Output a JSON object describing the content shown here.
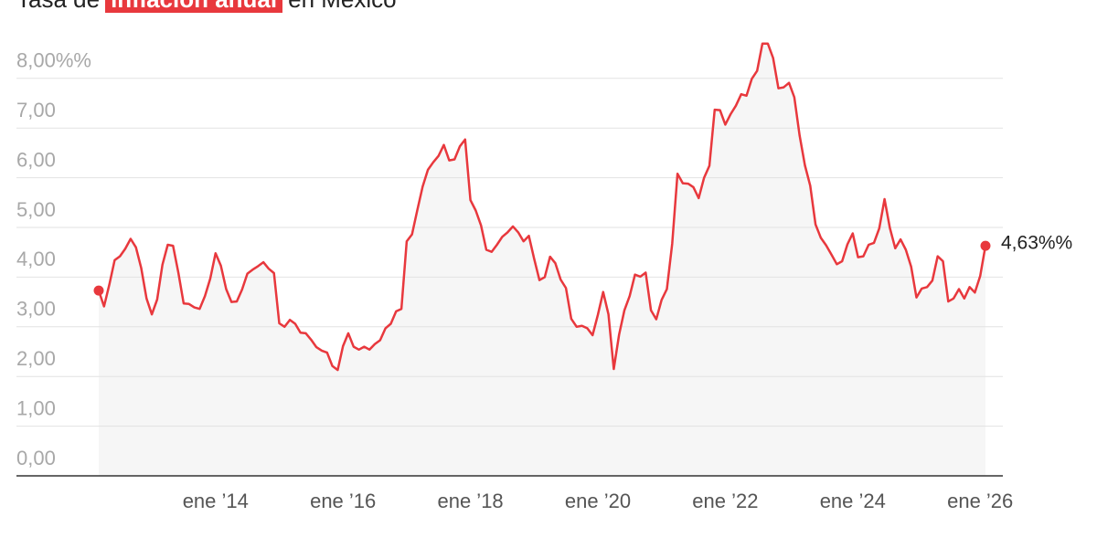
{
  "chart_data": {
    "type": "line",
    "title_prefix": "Tasa de",
    "title_highlight": "inflación anual",
    "title_suffix": "en México",
    "color": "#e8383d",
    "grid": true,
    "x": [
      "2012-03",
      "2012-04",
      "2012-05",
      "2012-06",
      "2012-07",
      "2012-08",
      "2012-09",
      "2012-10",
      "2012-11",
      "2012-12",
      "2013-01",
      "2013-02",
      "2013-03",
      "2013-04",
      "2013-05",
      "2013-06",
      "2013-07",
      "2013-08",
      "2013-09",
      "2013-10",
      "2013-11",
      "2013-12",
      "2014-01",
      "2014-02",
      "2014-03",
      "2014-04",
      "2014-05",
      "2014-06",
      "2014-07",
      "2014-08",
      "2014-09",
      "2014-10",
      "2014-11",
      "2014-12",
      "2015-01",
      "2015-02",
      "2015-03",
      "2015-04",
      "2015-05",
      "2015-06",
      "2015-07",
      "2015-08",
      "2015-09",
      "2015-10",
      "2015-11",
      "2015-12",
      "2016-01",
      "2016-02",
      "2016-03",
      "2016-04",
      "2016-05",
      "2016-06",
      "2016-07",
      "2016-08",
      "2016-09",
      "2016-10",
      "2016-11",
      "2016-12",
      "2017-01",
      "2017-02",
      "2017-03",
      "2017-04",
      "2017-05",
      "2017-06",
      "2017-07",
      "2017-08",
      "2017-09",
      "2017-10",
      "2017-11",
      "2017-12",
      "2018-01",
      "2018-02",
      "2018-03",
      "2018-04",
      "2018-05",
      "2018-06",
      "2018-07",
      "2018-08",
      "2018-09",
      "2018-10",
      "2018-11",
      "2018-12",
      "2019-01",
      "2019-02",
      "2019-03",
      "2019-04",
      "2019-05",
      "2019-06",
      "2019-07",
      "2019-08",
      "2019-09",
      "2019-10",
      "2019-11",
      "2019-12",
      "2020-01",
      "2020-02",
      "2020-03",
      "2020-04",
      "2020-05",
      "2020-06",
      "2020-07",
      "2020-08",
      "2020-09",
      "2020-10",
      "2020-11",
      "2020-12",
      "2021-01",
      "2021-02",
      "2021-03",
      "2021-04",
      "2021-05",
      "2021-06",
      "2021-07",
      "2021-08",
      "2021-09",
      "2021-10",
      "2021-11",
      "2021-12",
      "2022-01",
      "2022-02",
      "2022-03",
      "2022-04",
      "2022-05",
      "2022-06",
      "2022-07",
      "2022-08",
      "2022-09",
      "2022-10",
      "2022-11",
      "2022-12",
      "2023-01",
      "2023-02",
      "2023-03",
      "2023-04",
      "2023-05",
      "2023-06",
      "2023-07",
      "2023-08",
      "2023-09",
      "2023-10",
      "2023-11",
      "2023-12",
      "2024-01",
      "2024-02",
      "2024-03",
      "2024-04",
      "2024-05",
      "2024-06",
      "2024-07",
      "2024-08",
      "2024-09",
      "2024-10",
      "2024-11",
      "2024-12",
      "2025-01",
      "2025-02",
      "2025-03",
      "2025-04",
      "2025-05",
      "2025-06",
      "2025-07",
      "2025-08",
      "2025-09",
      "2025-10",
      "2025-11",
      "2025-12",
      "2026-01",
      "2026-02"
    ],
    "values": [
      3.73,
      3.41,
      3.85,
      4.34,
      4.42,
      4.57,
      4.77,
      4.6,
      4.18,
      3.57,
      3.25,
      3.55,
      4.25,
      4.65,
      4.63,
      4.09,
      3.47,
      3.46,
      3.39,
      3.36,
      3.62,
      3.97,
      4.48,
      4.23,
      3.76,
      3.5,
      3.51,
      3.75,
      4.07,
      4.15,
      4.22,
      4.3,
      4.17,
      4.08,
      3.07,
      3.0,
      3.14,
      3.06,
      2.88,
      2.87,
      2.74,
      2.59,
      2.52,
      2.48,
      2.21,
      2.13,
      2.61,
      2.87,
      2.6,
      2.54,
      2.6,
      2.54,
      2.65,
      2.73,
      2.97,
      3.06,
      3.31,
      3.36,
      4.72,
      4.86,
      5.35,
      5.82,
      6.16,
      6.31,
      6.44,
      6.66,
      6.35,
      6.37,
      6.63,
      6.77,
      5.55,
      5.34,
      5.04,
      4.55,
      4.51,
      4.65,
      4.81,
      4.9,
      5.02,
      4.9,
      4.72,
      4.83,
      4.37,
      3.94,
      4.0,
      4.41,
      4.28,
      3.95,
      3.78,
      3.16,
      3.0,
      3.02,
      2.97,
      2.83,
      3.24,
      3.7,
      3.25,
      2.15,
      2.84,
      3.33,
      3.62,
      4.05,
      4.01,
      4.09,
      3.33,
      3.15,
      3.54,
      3.76,
      4.67,
      6.08,
      5.89,
      5.88,
      5.81,
      5.59,
      6.0,
      6.24,
      7.37,
      7.36,
      7.07,
      7.28,
      7.45,
      7.68,
      7.65,
      7.99,
      8.15,
      8.7,
      8.7,
      8.41,
      7.8,
      7.82,
      7.91,
      7.62,
      6.85,
      6.25,
      5.84,
      5.06,
      4.79,
      4.64,
      4.45,
      4.26,
      4.32,
      4.66,
      4.88,
      4.4,
      4.42,
      4.65,
      4.69,
      4.98,
      5.57,
      4.99,
      4.58,
      4.76,
      4.55,
      4.21,
      3.59,
      3.77,
      3.8,
      3.93,
      4.42,
      4.32,
      3.51,
      3.57,
      3.76,
      3.57,
      3.8,
      3.69,
      4.02,
      4.63
    ],
    "last_value_label": "4,63%%",
    "xlim": [
      "2012-03",
      "2026-02"
    ],
    "xticks": [
      {
        "value": "2014-01",
        "label": "ene ’14"
      },
      {
        "value": "2016-01",
        "label": "ene ’16"
      },
      {
        "value": "2018-01",
        "label": "ene ’18"
      },
      {
        "value": "2020-01",
        "label": "ene ’20"
      },
      {
        "value": "2022-01",
        "label": "ene ’22"
      },
      {
        "value": "2024-01",
        "label": "ene ’24"
      },
      {
        "value": "2026-01",
        "label": "ene ’26"
      }
    ],
    "ylim": [
      0,
      8.8
    ],
    "yticks": [
      {
        "value": 0,
        "label": "0,00"
      },
      {
        "value": 1,
        "label": "1,00"
      },
      {
        "value": 2,
        "label": "2,00"
      },
      {
        "value": 3,
        "label": "3,00"
      },
      {
        "value": 4,
        "label": "4,00"
      },
      {
        "value": 5,
        "label": "5,00"
      },
      {
        "value": 6,
        "label": "6,00"
      },
      {
        "value": 7,
        "label": "7,00"
      },
      {
        "value": 8,
        "label": "8,00%%"
      }
    ]
  }
}
